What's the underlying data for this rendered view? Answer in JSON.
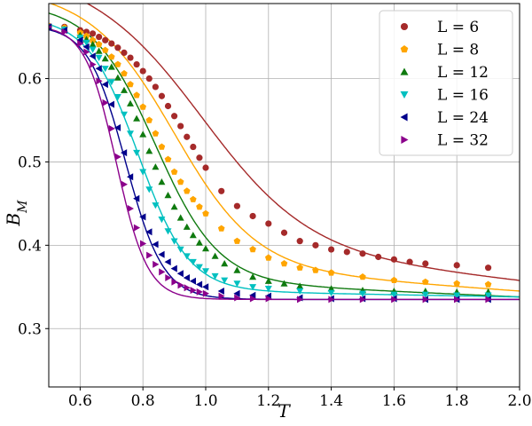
{
  "chart_data": {
    "type": "scatter",
    "title": "",
    "xlabel": "T",
    "ylabel": "B_M",
    "xlim": [
      0.5,
      2.0
    ],
    "ylim": [
      0.23,
      0.69
    ],
    "xticks": [
      "0.6",
      "0.8",
      "1.0",
      "1.2",
      "1.4",
      "1.6",
      "1.8",
      "2.0"
    ],
    "yticks": [
      "0.3",
      "0.4",
      "0.5",
      "0.6"
    ],
    "grid": true,
    "legend_position": "top-right",
    "series": [
      {
        "name": "L = 6",
        "color": "#a52a2a",
        "marker": "circle",
        "fit": {
          "Tc": 0.99,
          "w": 0.17,
          "hi": 0.667,
          "lo": 0.357,
          "tail": 0.06
        },
        "x": [
          0.5,
          0.55,
          0.6,
          0.62,
          0.64,
          0.66,
          0.68,
          0.7,
          0.72,
          0.74,
          0.76,
          0.78,
          0.8,
          0.82,
          0.84,
          0.86,
          0.88,
          0.9,
          0.92,
          0.94,
          0.96,
          0.98,
          1.0,
          1.05,
          1.1,
          1.15,
          1.2,
          1.25,
          1.3,
          1.35,
          1.4,
          1.45,
          1.5,
          1.55,
          1.6,
          1.65,
          1.7,
          1.8,
          1.9
        ],
        "y": [
          0.663,
          0.662,
          0.658,
          0.656,
          0.654,
          0.65,
          0.646,
          0.642,
          0.637,
          0.631,
          0.625,
          0.617,
          0.609,
          0.6,
          0.59,
          0.579,
          0.567,
          0.555,
          0.543,
          0.53,
          0.518,
          0.505,
          0.493,
          0.465,
          0.447,
          0.435,
          0.426,
          0.415,
          0.405,
          0.4,
          0.395,
          0.392,
          0.39,
          0.386,
          0.383,
          0.38,
          0.378,
          0.376,
          0.373
        ]
      },
      {
        "name": "L = 8",
        "color": "#ffa500",
        "marker": "pentagon",
        "fit": {
          "Tc": 0.9,
          "w": 0.13,
          "hi": 0.665,
          "lo": 0.345,
          "tail": 0.04
        },
        "x": [
          0.5,
          0.55,
          0.6,
          0.62,
          0.64,
          0.66,
          0.68,
          0.7,
          0.72,
          0.74,
          0.76,
          0.78,
          0.8,
          0.82,
          0.84,
          0.86,
          0.88,
          0.9,
          0.92,
          0.94,
          0.96,
          0.98,
          1.0,
          1.05,
          1.1,
          1.15,
          1.2,
          1.25,
          1.3,
          1.35,
          1.4,
          1.5,
          1.6,
          1.7,
          1.8,
          1.9
        ],
        "y": [
          0.663,
          0.661,
          0.655,
          0.651,
          0.646,
          0.641,
          0.634,
          0.626,
          0.617,
          0.606,
          0.593,
          0.58,
          0.566,
          0.55,
          0.534,
          0.518,
          0.503,
          0.488,
          0.476,
          0.465,
          0.455,
          0.446,
          0.438,
          0.42,
          0.405,
          0.395,
          0.385,
          0.378,
          0.373,
          0.37,
          0.367,
          0.362,
          0.358,
          0.356,
          0.354,
          0.353
        ]
      },
      {
        "name": "L = 12",
        "color": "#0f7a0f",
        "marker": "triangle-up",
        "fit": {
          "Tc": 0.84,
          "w": 0.1,
          "hi": 0.664,
          "lo": 0.338,
          "tail": 0.025
        },
        "x": [
          0.5,
          0.55,
          0.6,
          0.62,
          0.64,
          0.66,
          0.68,
          0.7,
          0.72,
          0.74,
          0.76,
          0.78,
          0.8,
          0.82,
          0.84,
          0.86,
          0.88,
          0.9,
          0.92,
          0.94,
          0.96,
          0.98,
          1.0,
          1.03,
          1.06,
          1.1,
          1.15,
          1.2,
          1.25,
          1.3,
          1.4,
          1.5,
          1.6,
          1.7,
          1.8,
          1.9
        ],
        "y": [
          0.662,
          0.659,
          0.652,
          0.647,
          0.641,
          0.633,
          0.624,
          0.614,
          0.601,
          0.586,
          0.57,
          0.552,
          0.533,
          0.513,
          0.494,
          0.476,
          0.46,
          0.446,
          0.433,
          0.422,
          0.412,
          0.403,
          0.396,
          0.387,
          0.378,
          0.37,
          0.362,
          0.357,
          0.354,
          0.351,
          0.348,
          0.346,
          0.345,
          0.345,
          0.344,
          0.344
        ]
      },
      {
        "name": "L = 16",
        "color": "#00c0c0",
        "marker": "triangle-down",
        "fit": {
          "Tc": 0.785,
          "w": 0.08,
          "hi": 0.664,
          "lo": 0.338,
          "tail": 0.01
        },
        "x": [
          0.5,
          0.55,
          0.6,
          0.62,
          0.64,
          0.66,
          0.68,
          0.7,
          0.72,
          0.74,
          0.76,
          0.78,
          0.8,
          0.82,
          0.84,
          0.86,
          0.88,
          0.9,
          0.92,
          0.94,
          0.96,
          0.98,
          1.0,
          1.03,
          1.06,
          1.1,
          1.15,
          1.2,
          1.3,
          1.4,
          1.5,
          1.6,
          1.7,
          1.8,
          1.9
        ],
        "y": [
          0.662,
          0.659,
          0.649,
          0.643,
          0.635,
          0.625,
          0.612,
          0.596,
          0.578,
          0.557,
          0.534,
          0.511,
          0.488,
          0.467,
          0.448,
          0.431,
          0.417,
          0.405,
          0.395,
          0.387,
          0.38,
          0.374,
          0.369,
          0.363,
          0.358,
          0.354,
          0.35,
          0.348,
          0.345,
          0.343,
          0.342,
          0.341,
          0.341,
          0.34,
          0.34
        ]
      },
      {
        "name": "L = 24",
        "color": "#00008b",
        "marker": "triangle-left",
        "fit": {
          "Tc": 0.745,
          "w": 0.06,
          "hi": 0.664,
          "lo": 0.335,
          "tail": 0.0
        },
        "x": [
          0.5,
          0.55,
          0.6,
          0.62,
          0.64,
          0.66,
          0.68,
          0.7,
          0.72,
          0.74,
          0.76,
          0.78,
          0.8,
          0.82,
          0.84,
          0.86,
          0.88,
          0.9,
          0.92,
          0.94,
          0.96,
          0.98,
          1.0,
          1.05,
          1.1,
          1.15,
          1.2,
          1.3,
          1.4,
          1.5,
          1.6,
          1.7,
          1.8,
          1.9
        ],
        "y": [
          0.662,
          0.658,
          0.646,
          0.638,
          0.627,
          0.612,
          0.593,
          0.569,
          0.541,
          0.511,
          0.482,
          0.456,
          0.434,
          0.416,
          0.401,
          0.389,
          0.38,
          0.372,
          0.366,
          0.361,
          0.357,
          0.353,
          0.35,
          0.345,
          0.342,
          0.34,
          0.339,
          0.337,
          0.336,
          0.336,
          0.336,
          0.335,
          0.335,
          0.335
        ]
      },
      {
        "name": "L = 32",
        "color": "#8b008b",
        "marker": "triangle-right",
        "fit": {
          "Tc": 0.715,
          "w": 0.05,
          "hi": 0.664,
          "lo": 0.335,
          "tail": 0.0
        },
        "x": [
          0.5,
          0.55,
          0.6,
          0.62,
          0.64,
          0.66,
          0.68,
          0.7,
          0.72,
          0.74,
          0.76,
          0.78,
          0.8,
          0.82,
          0.84,
          0.86,
          0.88,
          0.9,
          0.92,
          0.94,
          0.96,
          0.98,
          1.0,
          1.05,
          1.1,
          1.15,
          1.2,
          1.3,
          1.4,
          1.5,
          1.6,
          1.7,
          1.8,
          1.9
        ],
        "y": [
          0.662,
          0.656,
          0.642,
          0.632,
          0.617,
          0.597,
          0.571,
          0.54,
          0.506,
          0.473,
          0.444,
          0.421,
          0.402,
          0.388,
          0.377,
          0.368,
          0.361,
          0.356,
          0.352,
          0.349,
          0.346,
          0.344,
          0.342,
          0.339,
          0.337,
          0.336,
          0.336,
          0.335,
          0.335,
          0.335,
          0.335,
          0.335,
          0.335,
          0.335
        ]
      }
    ]
  }
}
